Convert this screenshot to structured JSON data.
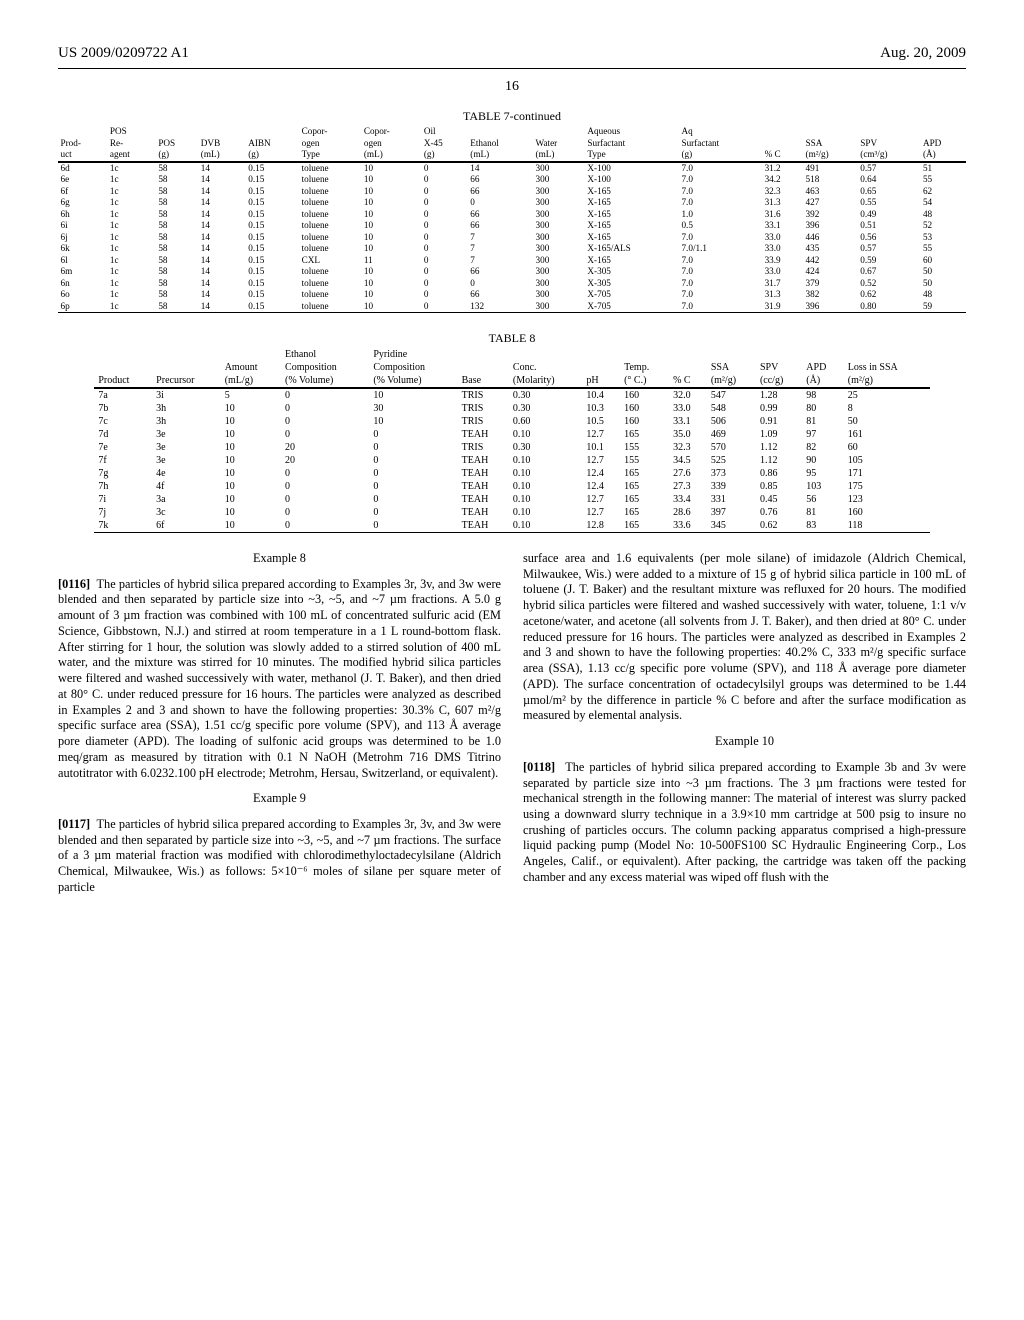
{
  "header": {
    "left": "US 2009/0209722 A1",
    "right": "Aug. 20, 2009"
  },
  "page_number": "16",
  "table7": {
    "caption": "TABLE 7-continued",
    "columns": [
      "Prod-\nuct",
      "POS\nRe-\nagent",
      "POS\n(g)",
      "DVB\n(mL)",
      "AIBN\n(g)",
      "Copor-\nogen\nType",
      "Copor-\nogen\n(mL)",
      "Oil\nX-45\n(g)",
      "Ethanol\n(mL)",
      "Water\n(mL)",
      "Aqueous\nSurfactant\nType",
      "Aq\nSurfactant\n(g)",
      "% C",
      "SSA\n(m²/g)",
      "SPV\n(cm³/g)",
      "APD\n(Å)"
    ],
    "rows": [
      [
        "6d",
        "1c",
        "58",
        "14",
        "0.15",
        "toluene",
        "10",
        "0",
        "14",
        "300",
        "X-100",
        "7.0",
        "31.2",
        "491",
        "0.57",
        "51"
      ],
      [
        "6e",
        "1c",
        "58",
        "14",
        "0.15",
        "toluene",
        "10",
        "0",
        "66",
        "300",
        "X-100",
        "7.0",
        "34.2",
        "518",
        "0.64",
        "55"
      ],
      [
        "6f",
        "1c",
        "58",
        "14",
        "0.15",
        "toluene",
        "10",
        "0",
        "66",
        "300",
        "X-165",
        "7.0",
        "32.3",
        "463",
        "0.65",
        "62"
      ],
      [
        "6g",
        "1c",
        "58",
        "14",
        "0.15",
        "toluene",
        "10",
        "0",
        "0",
        "300",
        "X-165",
        "7.0",
        "31.3",
        "427",
        "0.55",
        "54"
      ],
      [
        "6h",
        "1c",
        "58",
        "14",
        "0.15",
        "toluene",
        "10",
        "0",
        "66",
        "300",
        "X-165",
        "1.0",
        "31.6",
        "392",
        "0.49",
        "48"
      ],
      [
        "6i",
        "1c",
        "58",
        "14",
        "0.15",
        "toluene",
        "10",
        "0",
        "66",
        "300",
        "X-165",
        "0.5",
        "33.1",
        "396",
        "0.51",
        "52"
      ],
      [
        "6j",
        "1c",
        "58",
        "14",
        "0.15",
        "toluene",
        "10",
        "0",
        "7",
        "300",
        "X-165",
        "7.0",
        "33.0",
        "446",
        "0.56",
        "53"
      ],
      [
        "6k",
        "1c",
        "58",
        "14",
        "0.15",
        "toluene",
        "10",
        "0",
        "7",
        "300",
        "X-165/ALS",
        "7.0/1.1",
        "33.0",
        "435",
        "0.57",
        "55"
      ],
      [
        "6l",
        "1c",
        "58",
        "14",
        "0.15",
        "CXL",
        "11",
        "0",
        "7",
        "300",
        "X-165",
        "7.0",
        "33.9",
        "442",
        "0.59",
        "60"
      ],
      [
        "6m",
        "1c",
        "58",
        "14",
        "0.15",
        "toluene",
        "10",
        "0",
        "66",
        "300",
        "X-305",
        "7.0",
        "33.0",
        "424",
        "0.67",
        "50"
      ],
      [
        "6n",
        "1c",
        "58",
        "14",
        "0.15",
        "toluene",
        "10",
        "0",
        "0",
        "300",
        "X-305",
        "7.0",
        "31.7",
        "379",
        "0.52",
        "50"
      ],
      [
        "6o",
        "1c",
        "58",
        "14",
        "0.15",
        "toluene",
        "10",
        "0",
        "66",
        "300",
        "X-705",
        "7.0",
        "31.3",
        "382",
        "0.62",
        "48"
      ],
      [
        "6p",
        "1c",
        "58",
        "14",
        "0.15",
        "toluene",
        "10",
        "0",
        "132",
        "300",
        "X-705",
        "7.0",
        "31.9",
        "396",
        "0.80",
        "59"
      ]
    ]
  },
  "table8": {
    "caption": "TABLE 8",
    "columns": [
      "Product",
      "Precursor",
      "Amount\n(mL/g)",
      "Ethanol\nComposition\n(% Volume)",
      "Pyridine\nComposition\n(% Volume)",
      "Base",
      "Conc.\n(Molarity)",
      "pH",
      "Temp.\n(° C.)",
      "% C",
      "SSA\n(m²/g)",
      "SPV\n(cc/g)",
      "APD\n(Å)",
      "Loss in SSA\n(m²/g)"
    ],
    "rows": [
      [
        "7a",
        "3i",
        "5",
        "0",
        "10",
        "TRIS",
        "0.30",
        "10.4",
        "160",
        "32.0",
        "547",
        "1.28",
        "98",
        "25"
      ],
      [
        "7b",
        "3h",
        "10",
        "0",
        "30",
        "TRIS",
        "0.30",
        "10.3",
        "160",
        "33.0",
        "548",
        "0.99",
        "80",
        "8"
      ],
      [
        "7c",
        "3h",
        "10",
        "0",
        "10",
        "TRIS",
        "0.60",
        "10.5",
        "160",
        "33.1",
        "506",
        "0.91",
        "81",
        "50"
      ],
      [
        "7d",
        "3e",
        "10",
        "0",
        "0",
        "TEAH",
        "0.10",
        "12.7",
        "165",
        "35.0",
        "469",
        "1.09",
        "97",
        "161"
      ],
      [
        "7e",
        "3e",
        "10",
        "20",
        "0",
        "TRIS",
        "0.30",
        "10.1",
        "155",
        "32.3",
        "570",
        "1.12",
        "82",
        "60"
      ],
      [
        "7f",
        "3e",
        "10",
        "20",
        "0",
        "TEAH",
        "0.10",
        "12.7",
        "155",
        "34.5",
        "525",
        "1.12",
        "90",
        "105"
      ],
      [
        "7g",
        "4e",
        "10",
        "0",
        "0",
        "TEAH",
        "0.10",
        "12.4",
        "165",
        "27.6",
        "373",
        "0.86",
        "95",
        "171"
      ],
      [
        "7h",
        "4f",
        "10",
        "0",
        "0",
        "TEAH",
        "0.10",
        "12.4",
        "165",
        "27.3",
        "339",
        "0.85",
        "103",
        "175"
      ],
      [
        "7i",
        "3a",
        "10",
        "0",
        "0",
        "TEAH",
        "0.10",
        "12.7",
        "165",
        "33.4",
        "331",
        "0.45",
        "56",
        "123"
      ],
      [
        "7j",
        "3c",
        "10",
        "0",
        "0",
        "TEAH",
        "0.10",
        "12.7",
        "165",
        "28.6",
        "397",
        "0.76",
        "81",
        "160"
      ],
      [
        "7k",
        "6f",
        "10",
        "0",
        "0",
        "TEAH",
        "0.10",
        "12.8",
        "165",
        "33.6",
        "345",
        "0.62",
        "83",
        "118"
      ]
    ]
  },
  "body": {
    "ex8_title": "Example 8",
    "p0116_num": "[0116]",
    "p0116": "The particles of hybrid silica prepared according to Examples 3r, 3v, and 3w were blended and then separated by particle size into ~3, ~5, and ~7 µm fractions. A 5.0 g amount of 3 µm fraction was combined with 100 mL of concentrated sulfuric acid (EM Science, Gibbstown, N.J.) and stirred at room temperature in a 1 L round-bottom flask. After stirring for 1 hour, the solution was slowly added to a stirred solution of 400 mL water, and the mixture was stirred for 10 minutes. The modified hybrid silica particles were filtered and washed successively with water, methanol (J. T. Baker), and then dried at 80° C. under reduced pressure for 16 hours. The particles were analyzed as described in Examples 2 and 3 and shown to have the following properties: 30.3% C, 607 m²/g specific surface area (SSA), 1.51 cc/g specific pore volume (SPV), and 113 Å average pore diameter (APD). The loading of sulfonic acid groups was determined to be 1.0 meq/gram as measured by titration with 0.1 N NaOH (Metrohm 716 DMS Titrino autotitrator with 6.0232.100 pH electrode; Metrohm, Hersau, Switzerland, or equivalent).",
    "ex9_title": "Example 9",
    "p0117_num": "[0117]",
    "p0117": "The particles of hybrid silica prepared according to Examples 3r, 3v, and 3w were blended and then separated by particle size into ~3, ~5, and ~7 µm fractions. The surface of a 3 µm material fraction was modified with chlorodimethyloctadecylsilane (Aldrich Chemical, Milwaukee, Wis.) as follows: 5×10⁻⁶ moles of silane per square meter of particle",
    "p_col2_cont": "surface area and 1.6 equivalents (per mole silane) of imidazole (Aldrich Chemical, Milwaukee, Wis.) were added to a mixture of 15 g of hybrid silica particle in 100 mL of toluene (J. T. Baker) and the resultant mixture was refluxed for 20 hours. The modified hybrid silica particles were filtered and washed successively with water, toluene, 1:1 v/v acetone/water, and acetone (all solvents from J. T. Baker), and then dried at 80° C. under reduced pressure for 16 hours. The particles were analyzed as described in Examples 2 and 3 and shown to have the following properties: 40.2% C, 333 m²/g specific surface area (SSA), 1.13 cc/g specific pore volume (SPV), and 118 Å average pore diameter (APD). The surface concentration of octadecylsilyl groups was determined to be 1.44 µmol/m² by the difference in particle % C before and after the surface modification as measured by elemental analysis.",
    "ex10_title": "Example 10",
    "p0118_num": "[0118]",
    "p0118": "The particles of hybrid silica prepared according to Example 3b and 3v were separated by particle size into ~3 µm fractions. The 3 µm fractions were tested for mechanical strength in the following manner: The material of interest was slurry packed using a downward slurry technique in a 3.9×10 mm cartridge at 500 psig to insure no crushing of particles occurs. The column packing apparatus comprised a high-pressure liquid packing pump (Model No: 10-500FS100 SC Hydraulic Engineering Corp., Los Angeles, Calif., or equivalent). After packing, the cartridge was taken off the packing chamber and any excess material was wiped off flush with the"
  }
}
